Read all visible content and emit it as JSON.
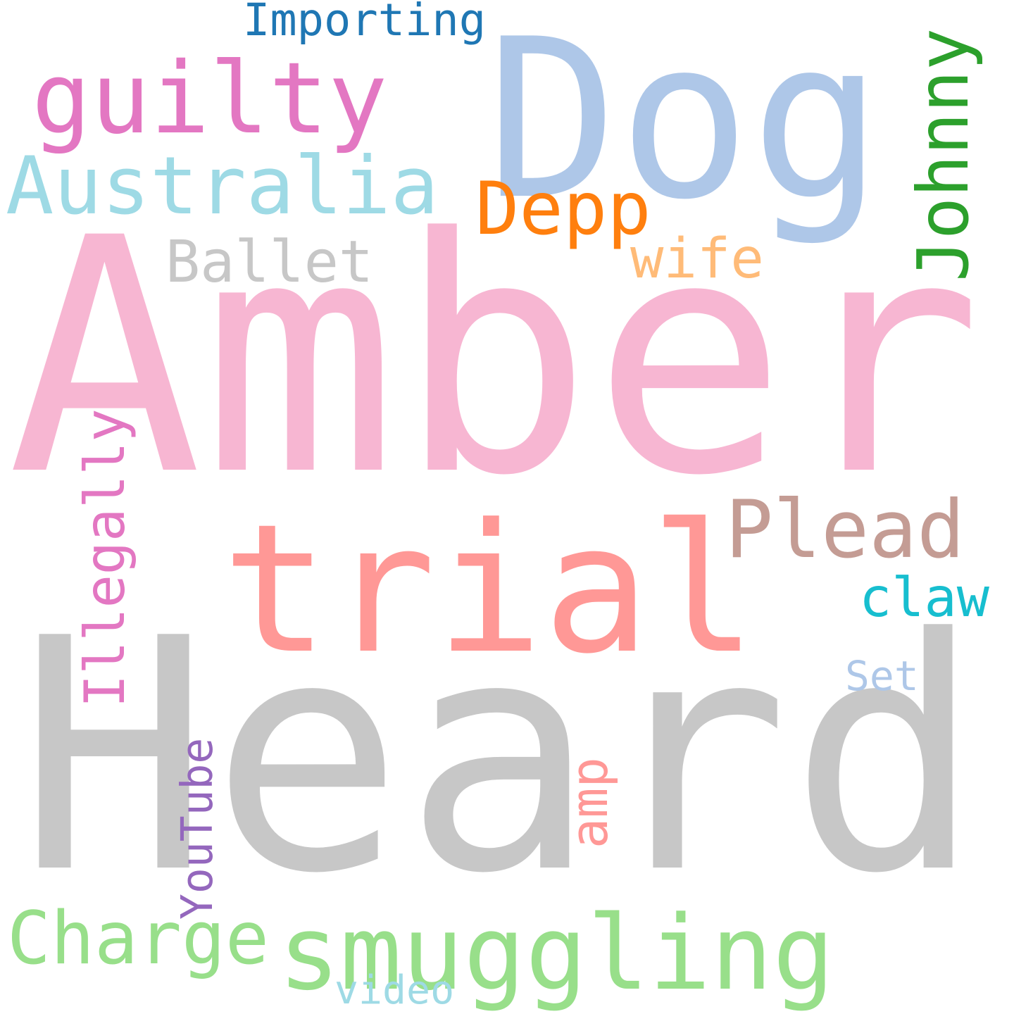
{
  "words": [
    {
      "id": "amber",
      "text": "Amber",
      "color": "#f7b6d2",
      "orientation": "horizontal"
    },
    {
      "id": "heard",
      "text": "Heard",
      "color": "#c7c7c7",
      "orientation": "horizontal"
    },
    {
      "id": "dog",
      "text": "Dog",
      "color": "#aec7e8",
      "orientation": "horizontal"
    },
    {
      "id": "trial",
      "text": "trial",
      "color": "#ff9896",
      "orientation": "horizontal"
    },
    {
      "id": "guilty",
      "text": "guilty",
      "color": "#e377c2",
      "orientation": "horizontal"
    },
    {
      "id": "australia",
      "text": "Australia",
      "color": "#9edae5",
      "orientation": "horizontal"
    },
    {
      "id": "smuggling",
      "text": "smuggling",
      "color": "#98df8a",
      "orientation": "horizontal"
    },
    {
      "id": "plead",
      "text": "Plead",
      "color": "#c49c94",
      "orientation": "horizontal"
    },
    {
      "id": "johnny",
      "text": "Johnny",
      "color": "#2ca02c",
      "orientation": "vertical"
    },
    {
      "id": "depp",
      "text": "Depp",
      "color": "#ff7f0e",
      "orientation": "horizontal"
    },
    {
      "id": "charge",
      "text": "Charge",
      "color": "#98df8a",
      "orientation": "horizontal"
    },
    {
      "id": "illegally",
      "text": "Illegally",
      "color": "#e377c2",
      "orientation": "vertical"
    },
    {
      "id": "ballet",
      "text": "Ballet",
      "color": "#c7c7c7",
      "orientation": "horizontal"
    },
    {
      "id": "importing",
      "text": "Importing",
      "color": "#1f77b4",
      "orientation": "horizontal"
    },
    {
      "id": "claw",
      "text": "claw",
      "color": "#17becf",
      "orientation": "horizontal"
    },
    {
      "id": "wife",
      "text": "wife",
      "color": "#ffbb78",
      "orientation": "horizontal"
    },
    {
      "id": "youtube",
      "text": "YouTube",
      "color": "#9467bd",
      "orientation": "vertical"
    },
    {
      "id": "amp",
      "text": "amp",
      "color": "#ff9896",
      "orientation": "vertical"
    },
    {
      "id": "set",
      "text": "Set",
      "color": "#aec7e8",
      "orientation": "horizontal"
    },
    {
      "id": "video",
      "text": "video",
      "color": "#9edae5",
      "orientation": "horizontal"
    }
  ]
}
